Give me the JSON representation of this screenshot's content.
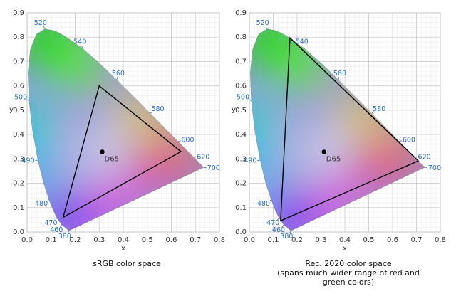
{
  "chart_data": [
    {
      "type": "chromaticity",
      "caption": [
        "sRGB color space"
      ],
      "xlabel": "x",
      "ylabel": "y",
      "xlim": [
        0,
        0.8
      ],
      "ylim": [
        0,
        0.9
      ],
      "xticks": [
        {
          "value": 0,
          "label": "0.0"
        },
        {
          "value": 0.1,
          "label": "0.1"
        },
        {
          "value": 0.2,
          "label": "0.2"
        },
        {
          "value": 0.3,
          "label": "0.3"
        },
        {
          "value": 0.4,
          "label": "0.4"
        },
        {
          "value": 0.5,
          "label": "0.5"
        },
        {
          "value": 0.6,
          "label": "0.6"
        },
        {
          "value": 0.7,
          "label": "0.7"
        },
        {
          "value": 0.8,
          "label": "0.8"
        }
      ],
      "yticks": [
        {
          "value": 0,
          "label": "0.0"
        },
        {
          "value": 0.1,
          "label": "0.1"
        },
        {
          "value": 0.2,
          "label": "0.2"
        },
        {
          "value": 0.3,
          "label": "0.3"
        },
        {
          "value": 0.4,
          "label": "0.4"
        },
        {
          "value": 0.5,
          "label": "0.5"
        },
        {
          "value": 0.6,
          "label": "0.6"
        },
        {
          "value": 0.7,
          "label": "0.7"
        },
        {
          "value": 0.8,
          "label": "0.8"
        },
        {
          "value": 0.9,
          "label": "0.9"
        }
      ],
      "grid": true,
      "locus": {
        "x": [
          0.1741,
          0.144,
          0.1241,
          0.1096,
          0.0913,
          0.0687,
          0.0454,
          0.0235,
          0.0082,
          0.0039,
          0.0139,
          0.0389,
          0.0743,
          0.1142,
          0.1547,
          0.2296,
          0.3016,
          0.3731,
          0.4441,
          0.5125,
          0.5752,
          0.627,
          0.6915,
          0.7347
        ],
        "y": [
          0.005,
          0.0297,
          0.0578,
          0.0868,
          0.1327,
          0.2007,
          0.295,
          0.4127,
          0.5384,
          0.6548,
          0.7502,
          0.812,
          0.8338,
          0.8262,
          0.8059,
          0.7543,
          0.6923,
          0.6245,
          0.5547,
          0.4866,
          0.4242,
          0.3725,
          0.3083,
          0.2653
        ]
      },
      "wavelength_labels": [
        {
          "wavelength": 380,
          "x": 0.1741,
          "y": 0.005
        },
        {
          "wavelength": 460,
          "x": 0.144,
          "y": 0.0297
        },
        {
          "wavelength": 470,
          "x": 0.1241,
          "y": 0.0578
        },
        {
          "wavelength": 480,
          "x": 0.0913,
          "y": 0.1327
        },
        {
          "wavelength": 490,
          "x": 0.0454,
          "y": 0.295
        },
        {
          "wavelength": 500,
          "x": 0.0082,
          "y": 0.5384
        },
        {
          "wavelength": 520,
          "x": 0.0743,
          "y": 0.8338
        },
        {
          "wavelength": 540,
          "x": 0.2296,
          "y": 0.7543
        },
        {
          "wavelength": 560,
          "x": 0.3731,
          "y": 0.6245
        },
        {
          "wavelength": 580,
          "x": 0.5125,
          "y": 0.4866
        },
        {
          "wavelength": 600,
          "x": 0.627,
          "y": 0.3725
        },
        {
          "wavelength": 620,
          "x": 0.6915,
          "y": 0.3083
        },
        {
          "wavelength": 700,
          "x": 0.7347,
          "y": 0.2653
        }
      ],
      "gamut": {
        "x": [
          0.64,
          0.3,
          0.15
        ],
        "y": [
          0.33,
          0.6,
          0.06
        ]
      },
      "white_point": {
        "name": "D65",
        "x": 0.3127,
        "y": 0.329
      }
    },
    {
      "type": "chromaticity",
      "caption": [
        "Rec. 2020 color space",
        "(spans much wider range of red and",
        "green colors)"
      ],
      "xlabel": "x",
      "ylabel": "y",
      "xlim": [
        0,
        0.8
      ],
      "ylim": [
        0,
        0.9
      ],
      "xticks": [
        {
          "value": 0,
          "label": "0.0"
        },
        {
          "value": 0.1,
          "label": "0.1"
        },
        {
          "value": 0.2,
          "label": "0.2"
        },
        {
          "value": 0.3,
          "label": "0.3"
        },
        {
          "value": 0.4,
          "label": "0.4"
        },
        {
          "value": 0.5,
          "label": "0.5"
        },
        {
          "value": 0.6,
          "label": "0.6"
        },
        {
          "value": 0.7,
          "label": "0.7"
        },
        {
          "value": 0.8,
          "label": "0.8"
        }
      ],
      "yticks": [
        {
          "value": 0,
          "label": "0.0"
        },
        {
          "value": 0.1,
          "label": "0.1"
        },
        {
          "value": 0.2,
          "label": "0.2"
        },
        {
          "value": 0.3,
          "label": "0.3"
        },
        {
          "value": 0.4,
          "label": "0.4"
        },
        {
          "value": 0.5,
          "label": "0.5"
        },
        {
          "value": 0.6,
          "label": "0.6"
        },
        {
          "value": 0.7,
          "label": "0.7"
        },
        {
          "value": 0.8,
          "label": "0.8"
        },
        {
          "value": 0.9,
          "label": "0.9"
        }
      ],
      "grid": true,
      "locus": {
        "x": [
          0.1741,
          0.144,
          0.1241,
          0.1096,
          0.0913,
          0.0687,
          0.0454,
          0.0235,
          0.0082,
          0.0039,
          0.0139,
          0.0389,
          0.0743,
          0.1142,
          0.1547,
          0.2296,
          0.3016,
          0.3731,
          0.4441,
          0.5125,
          0.5752,
          0.627,
          0.6915,
          0.7347
        ],
        "y": [
          0.005,
          0.0297,
          0.0578,
          0.0868,
          0.1327,
          0.2007,
          0.295,
          0.4127,
          0.5384,
          0.6548,
          0.7502,
          0.812,
          0.8338,
          0.8262,
          0.8059,
          0.7543,
          0.6923,
          0.6245,
          0.5547,
          0.4866,
          0.4242,
          0.3725,
          0.3083,
          0.2653
        ]
      },
      "wavelength_labels": [
        {
          "wavelength": 380,
          "x": 0.1741,
          "y": 0.005
        },
        {
          "wavelength": 460,
          "x": 0.144,
          "y": 0.0297
        },
        {
          "wavelength": 470,
          "x": 0.1241,
          "y": 0.0578
        },
        {
          "wavelength": 480,
          "x": 0.0913,
          "y": 0.1327
        },
        {
          "wavelength": 490,
          "x": 0.0454,
          "y": 0.295
        },
        {
          "wavelength": 500,
          "x": 0.0082,
          "y": 0.5384
        },
        {
          "wavelength": 520,
          "x": 0.0743,
          "y": 0.8338
        },
        {
          "wavelength": 540,
          "x": 0.2296,
          "y": 0.7543
        },
        {
          "wavelength": 560,
          "x": 0.3731,
          "y": 0.6245
        },
        {
          "wavelength": 580,
          "x": 0.5125,
          "y": 0.4866
        },
        {
          "wavelength": 600,
          "x": 0.627,
          "y": 0.3725
        },
        {
          "wavelength": 620,
          "x": 0.6915,
          "y": 0.3083
        },
        {
          "wavelength": 700,
          "x": 0.7347,
          "y": 0.2653
        }
      ],
      "gamut": {
        "x": [
          0.708,
          0.17,
          0.131
        ],
        "y": [
          0.292,
          0.797,
          0.046
        ]
      },
      "white_point": {
        "name": "D65",
        "x": 0.3127,
        "y": 0.329
      }
    }
  ]
}
